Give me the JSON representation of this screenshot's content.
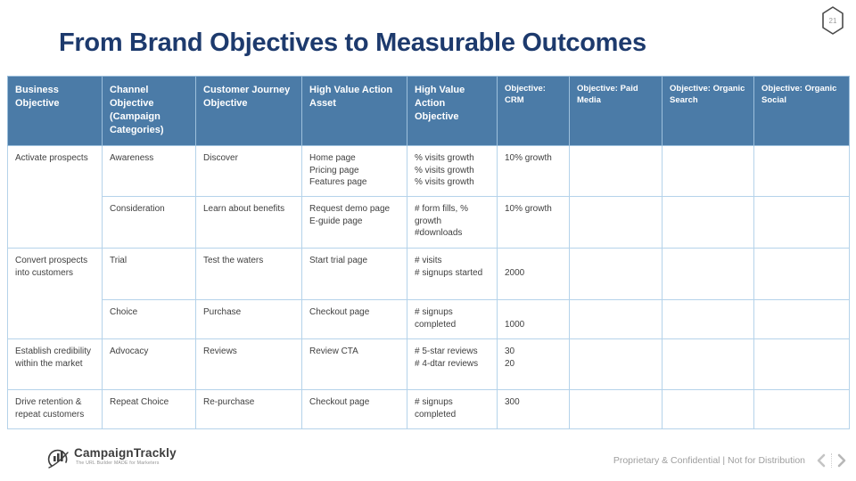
{
  "slide": {
    "number": "21",
    "title": "From Brand Objectives to Measurable Outcomes"
  },
  "table": {
    "headers": [
      {
        "label": "Business Objective",
        "size": "large"
      },
      {
        "label": "Channel Objective (Campaign Categories)",
        "size": "large"
      },
      {
        "label": "Customer Journey Objective",
        "size": "large"
      },
      {
        "label": "High Value Action Asset",
        "size": "large"
      },
      {
        "label": "High Value Action Objective",
        "size": "large"
      },
      {
        "label": "Objective: CRM",
        "size": "small"
      },
      {
        "label": "Objective: Paid Media",
        "size": "small"
      },
      {
        "label": "Objective: Organic Search",
        "size": "small"
      },
      {
        "label": "Objective: Organic Social",
        "size": "small"
      }
    ],
    "groups": [
      {
        "business_objective": "Activate prospects",
        "rows": [
          {
            "channel_objective": "Awareness",
            "journey_objective": "Discover",
            "action_asset": "Home page\nPricing page\nFeatures page",
            "action_objective": "% visits growth\n% visits growth\n% visits growth",
            "crm": "10% growth",
            "paid_media": "",
            "organic_search": "",
            "organic_social": ""
          },
          {
            "channel_objective": "Consideration",
            "journey_objective": "Learn about benefits",
            "action_asset": "Request demo page\nE-guide page",
            "action_objective": "# form fills, % growth\n#downloads",
            "crm": "10% growth",
            "paid_media": "",
            "organic_search": "",
            "organic_social": ""
          }
        ]
      },
      {
        "business_objective": "Convert prospects into customers",
        "rows": [
          {
            "channel_objective": "Trial",
            "journey_objective": "Test the waters",
            "action_asset": "Start trial page",
            "action_objective": "# visits\n# signups started",
            "crm": "\n2000",
            "paid_media": "",
            "organic_search": "",
            "organic_social": ""
          },
          {
            "channel_objective": "Choice",
            "journey_objective": "Purchase",
            "action_asset": "Checkout page",
            "action_objective": "# signups completed",
            "crm": "\n1000",
            "paid_media": "",
            "organic_search": "",
            "organic_social": ""
          }
        ]
      },
      {
        "business_objective": "Establish credibility within the market",
        "rows": [
          {
            "channel_objective": "Advocacy",
            "journey_objective": "Reviews",
            "action_asset": "Review CTA",
            "action_objective": "# 5-star reviews\n# 4-dtar reviews",
            "crm": "30\n20",
            "paid_media": "",
            "organic_search": "",
            "organic_social": ""
          }
        ]
      },
      {
        "business_objective": "Drive retention & repeat customers",
        "rows": [
          {
            "channel_objective": "Repeat Choice",
            "journey_objective": "Re-purchase",
            "action_asset": "Checkout page",
            "action_objective": "# signups completed",
            "crm": "300",
            "paid_media": "",
            "organic_search": "",
            "organic_social": ""
          }
        ]
      }
    ]
  },
  "footer": {
    "brand": "CampaignTrackly",
    "tagline": "The URL Builder MADE for Marketers",
    "note": "Proprietary & Confidential  |  Not for Distribution"
  },
  "colors": {
    "title": "#1d3a6d",
    "header_bg": "#4b7ba7",
    "header_divider": "#9dc0dc",
    "body_border": "#b5d3ea",
    "footer_text": "#9e9e9e"
  }
}
